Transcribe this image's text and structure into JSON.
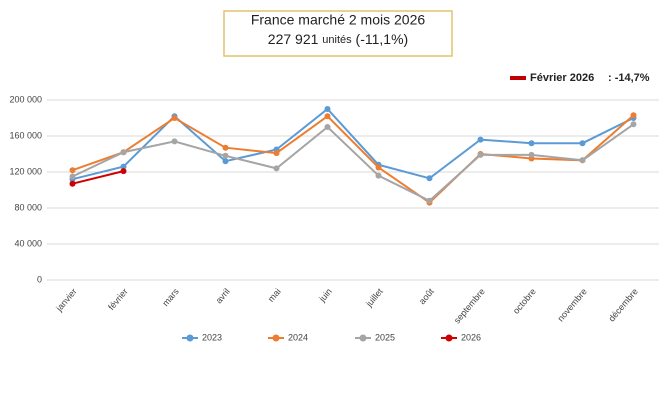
{
  "chart_data": {
    "type": "line",
    "title": "France marché 2 mois 2026",
    "subtitle_parts": [
      "227 921",
      "unités",
      "(-11,1%)"
    ],
    "annotation": {
      "label": "Février 2026",
      "value": ": -14,7%",
      "color": "#c00000"
    },
    "categories": [
      "janvier",
      "février",
      "mars",
      "avril",
      "mai",
      "juin",
      "juillet",
      "août",
      "septembre",
      "octobre",
      "novembre",
      "décembre"
    ],
    "series": [
      {
        "name": "2023",
        "color": "#5b9bd5",
        "values": [
          112000,
          126000,
          182000,
          132000,
          145000,
          190000,
          128000,
          113000,
          156000,
          152000,
          152000,
          180000
        ]
      },
      {
        "name": "2024",
        "color": "#ed7d31",
        "values": [
          122000,
          142000,
          180000,
          147000,
          141000,
          182000,
          125000,
          86000,
          140000,
          135000,
          133000,
          183000
        ]
      },
      {
        "name": "2025",
        "color": "#a5a5a5",
        "values": [
          115000,
          142000,
          154000,
          138000,
          124000,
          170000,
          116000,
          88000,
          139000,
          139000,
          133000,
          173000
        ]
      },
      {
        "name": "2026",
        "color": "#d00000",
        "values": [
          107000,
          121000,
          null,
          null,
          null,
          null,
          null,
          null,
          null,
          null,
          null,
          null
        ]
      }
    ],
    "ylim": [
      0,
      200000
    ],
    "yticks": [
      {
        "value": 0,
        "label": "0"
      },
      {
        "value": 40000,
        "label": "40 000"
      },
      {
        "value": 80000,
        "label": "80 000"
      },
      {
        "value": 120000,
        "label": "120 000"
      },
      {
        "value": 160000,
        "label": "160 000"
      },
      {
        "value": 200000,
        "label": "200 000"
      }
    ],
    "grid": true
  }
}
